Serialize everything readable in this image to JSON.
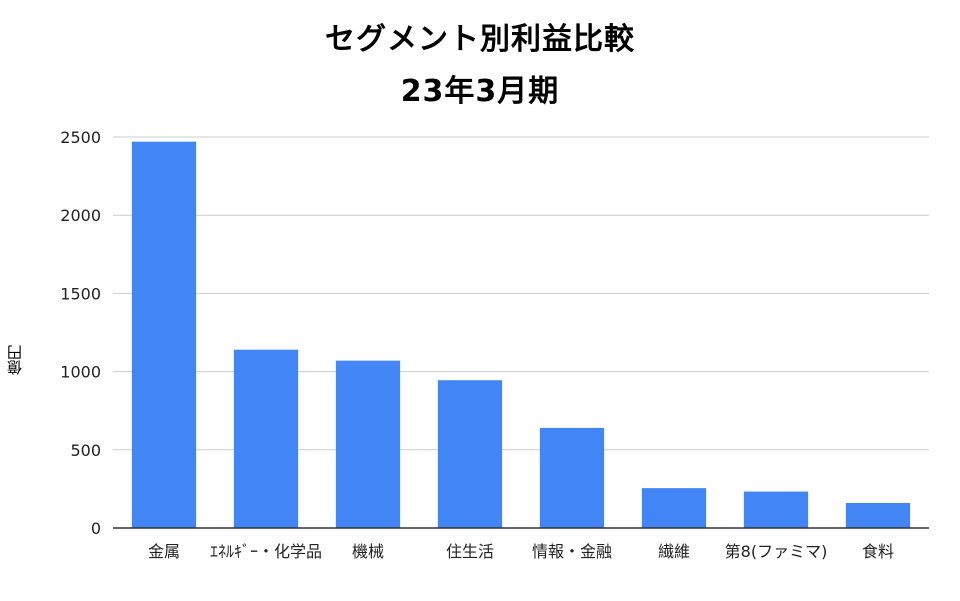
{
  "chart_data": {
    "type": "bar",
    "title": "セグメント別利益比較",
    "subtitle": "23年3月期",
    "xlabel": "",
    "ylabel": "億円",
    "ylim": [
      0,
      2500
    ],
    "yticks": [
      0,
      500,
      1000,
      1500,
      2000,
      2500
    ],
    "grid": true,
    "categories": [
      "金属",
      "ｴﾈﾙｷﾞｰ・化学品",
      "機械",
      "住生活",
      "情報・金融",
      "繊維",
      "第8(ファミマ)",
      "食料"
    ],
    "values": [
      2470,
      1140,
      1070,
      945,
      640,
      255,
      233,
      160
    ],
    "bar_color": "#4285f4"
  }
}
